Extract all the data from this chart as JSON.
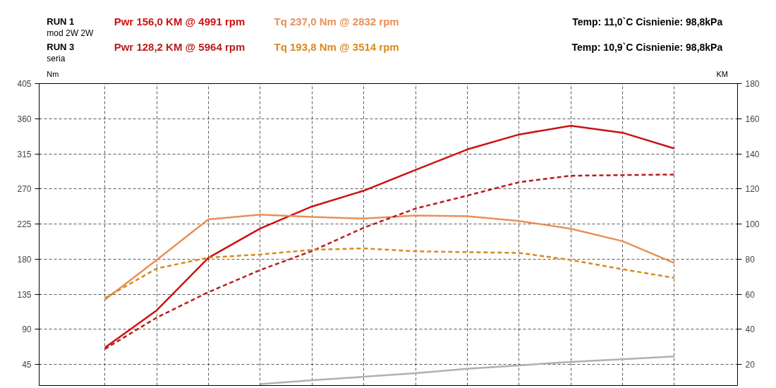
{
  "chart_data": {
    "type": "line",
    "ylabel": "Nm",
    "y2label": "KM",
    "annotations": [
      "RUN 1",
      "mod 2W 2W",
      "Temp: 11,0`C   Cisnienie: 98,8kPa",
      "RUN 3",
      "seria",
      "Temp: 10,9`C   Cisnienie: 98,8kPa"
    ],
    "categories": [
      null,
      null,
      null,
      null,
      null,
      null,
      null,
      null,
      null,
      null,
      null,
      null
    ],
    "series": [
      {
        "name": "Pwr  156,0 KM @ 4991 rpm",
        "color": "#cc1111",
        "axis": "y2",
        "line_style": "solid",
        "values": [
          29.6,
          50.8,
          80.8,
          97.5,
          110,
          119,
          130.8,
          142.5,
          151,
          156,
          152,
          143
        ]
      },
      {
        "name": "Tq 237,0 Nm @ 2832 rpm",
        "color": "#e8905a",
        "line_style": "solid",
        "values": [
          128,
          179,
          231,
          237,
          234,
          232,
          236,
          235,
          229,
          219,
          203,
          175
        ]
      },
      {
        "name": "Pwr  128,2 KM @ 5964 rpm",
        "color": "#b81c1c",
        "axis": "y2",
        "line_style": "dashed",
        "values": [
          28.8,
          46.7,
          61.2,
          73.8,
          84.6,
          97.9,
          108.8,
          116.2,
          123.8,
          127.5,
          127.9,
          128.2
        ]
      },
      {
        "name": "Tq 193,8 Nm @ 3514 rpm",
        "color": "#d88a1c",
        "line_style": "dashed",
        "values": [
          130,
          168,
          182,
          186,
          192,
          193.8,
          190,
          189,
          188,
          179,
          167,
          156
        ]
      },
      {
        "color": "#b0b0b0",
        "axis": "y2",
        "line_style": "solid",
        "values": [
          null,
          null,
          null,
          8.8,
          11,
          13,
          15,
          17.5,
          19.5,
          21.5,
          23,
          24.6
        ]
      }
    ],
    "ylim": [
      18,
      405
    ],
    "yticks": [
      45,
      90,
      135,
      180,
      225,
      270,
      315,
      360,
      405
    ],
    "y2lim": [
      8,
      180
    ],
    "y2ticks": [
      20,
      40,
      60,
      80,
      100,
      120,
      140,
      160,
      180
    ],
    "grid": true,
    "tick_labels": "y",
    "legend": "top",
    "marker": "none"
  }
}
